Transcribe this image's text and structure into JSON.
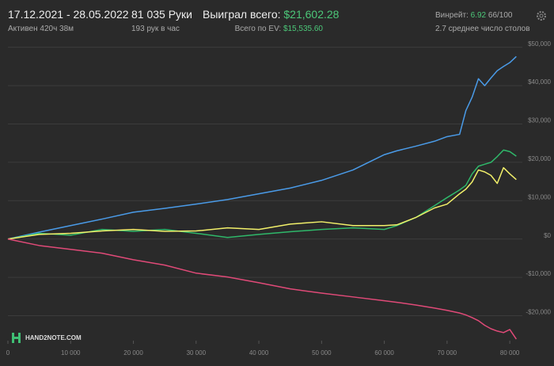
{
  "header": {
    "period": "17.12.2021 - 28.05.2022",
    "active": "Активен 420ч 38м",
    "hands": "81 035 Руки",
    "hands_per_hour": "193 рук в час",
    "won_label": "Выиграл всего:",
    "won_value": "$21,602.28",
    "ev_label": "Всего по EV:",
    "ev_value": "$15,535.60",
    "winrate_label": "Винрейт:",
    "winrate_value": "6.92",
    "winrate_unit": "66/100",
    "tables": "2.7 среднее число столов",
    "logo": "HAND2NOTE.COM"
  },
  "chart_data": {
    "type": "line",
    "grid": true,
    "x": [
      0,
      5000,
      10000,
      15000,
      20000,
      25000,
      30000,
      35000,
      40000,
      45000,
      50000,
      55000,
      60000,
      62000,
      65000,
      68000,
      70000,
      72000,
      73000,
      74000,
      75000,
      76000,
      77000,
      78000,
      79000,
      80000,
      81035
    ],
    "xlim": [
      0,
      82000
    ],
    "xticks": [
      0,
      {
        "value": 10000,
        "label": "10 000"
      },
      {
        "value": 20000,
        "label": "20 000"
      },
      {
        "value": 30000,
        "label": "30 000"
      },
      {
        "value": 40000,
        "label": "40 000"
      },
      {
        "value": 50000,
        "label": "50 000"
      },
      {
        "value": 60000,
        "label": "60 000"
      },
      {
        "value": 70000,
        "label": "70 000"
      },
      {
        "value": 80000,
        "label": "80 000"
      }
    ],
    "ylim": [
      -26500,
      52000
    ],
    "yticks": [
      {
        "value": -20000,
        "label": "-$20,000"
      },
      {
        "value": -10000,
        "label": "-$10,000"
      },
      {
        "value": 0,
        "label": "$0"
      },
      {
        "value": 10000,
        "label": "$10,000"
      },
      {
        "value": 20000,
        "label": "$20,000"
      },
      {
        "value": 30000,
        "label": "$30,000"
      },
      {
        "value": 40000,
        "label": "$40,000"
      },
      {
        "value": 50000,
        "label": "$50,000"
      }
    ],
    "series": [
      {
        "color": "#4a9be8",
        "values": [
          0,
          1800,
          3500,
          5200,
          7000,
          8000,
          9100,
          10300,
          11800,
          13300,
          15300,
          18000,
          22000,
          23000,
          24200,
          25500,
          26700,
          27300,
          33500,
          37000,
          41800,
          40000,
          42000,
          43900,
          45000,
          46000,
          47600
        ]
      },
      {
        "color": "#2fb86a",
        "values": [
          0,
          1500,
          1000,
          2500,
          2000,
          2500,
          1500,
          400,
          1200,
          1900,
          2500,
          2900,
          2500,
          3500,
          5600,
          8700,
          10800,
          12800,
          14000,
          17000,
          19000,
          19500,
          20000,
          21500,
          23200,
          22800,
          21600
        ]
      },
      {
        "color": "#f2f06a",
        "values": [
          0,
          1200,
          1500,
          2100,
          2500,
          2000,
          2100,
          2900,
          2500,
          3900,
          4500,
          3500,
          3500,
          3700,
          5600,
          8100,
          9100,
          11800,
          13000,
          14900,
          18000,
          17500,
          16600,
          14500,
          18600,
          17000,
          15500
        ]
      },
      {
        "color": "#e04a78",
        "values": [
          0,
          -1700,
          -2700,
          -3700,
          -5400,
          -6800,
          -8900,
          -9900,
          -11400,
          -13000,
          -14100,
          -15100,
          -16100,
          -16500,
          -17200,
          -18000,
          -18600,
          -19300,
          -19800,
          -20500,
          -21300,
          -22500,
          -23400,
          -24000,
          -24400,
          -23600,
          -26100
        ]
      }
    ]
  }
}
